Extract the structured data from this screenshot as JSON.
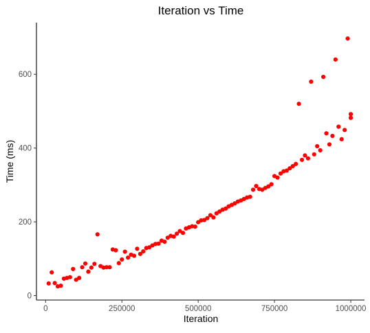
{
  "chart_data": {
    "type": "scatter",
    "title": "Iteration vs Time",
    "xlabel": "Iteration",
    "ylabel": "Time (ms)",
    "xlim": [
      -30000,
      1045000
    ],
    "ylim": [
      -12,
      740
    ],
    "xticks": [
      0,
      250000,
      500000,
      750000,
      1000000
    ],
    "xtick_labels": [
      "0",
      "250000",
      "500000",
      "750000",
      "1000000"
    ],
    "yticks": [
      0,
      200,
      400,
      600
    ],
    "ytick_labels": [
      "0",
      "200",
      "400",
      "600"
    ],
    "grid": false,
    "legend": "none",
    "point_color": "#ff0000",
    "series": [
      {
        "x": [
          10000,
          20000,
          30000,
          40000,
          50000,
          60000,
          70000,
          80000,
          90000,
          100000,
          110000,
          120000,
          130000,
          140000,
          150000,
          160000,
          170000,
          180000,
          190000,
          200000,
          210000,
          220000,
          230000,
          240000,
          250000,
          260000,
          270000,
          280000,
          290000,
          300000,
          310000,
          320000,
          330000,
          340000,
          350000,
          360000,
          370000,
          380000,
          390000,
          400000,
          410000,
          420000,
          430000,
          440000,
          450000,
          460000,
          470000,
          480000,
          490000,
          500000,
          510000,
          520000,
          530000,
          540000,
          550000,
          560000,
          570000,
          580000,
          590000,
          600000,
          610000,
          620000,
          630000,
          640000,
          650000,
          660000,
          670000,
          680000,
          690000,
          700000,
          710000,
          720000,
          730000,
          740000,
          750000,
          760000,
          770000,
          780000,
          790000,
          800000,
          810000,
          820000,
          830000,
          840000,
          850000,
          860000,
          870000,
          880000,
          890000,
          900000,
          910000,
          920000,
          930000,
          940000,
          950000,
          960000,
          970000,
          980000,
          990000,
          1000000
        ],
        "y": [
          33,
          63,
          34,
          25,
          27,
          46,
          48,
          50,
          72,
          43,
          48,
          77,
          87,
          65,
          76,
          86,
          166,
          80,
          76,
          77,
          77,
          125,
          123,
          88,
          98,
          119,
          103,
          111,
          108,
          127,
          113,
          120,
          129,
          131,
          136,
          140,
          141,
          149,
          146,
          157,
          162,
          160,
          168,
          175,
          170,
          182,
          185,
          188,
          187,
          199,
          204,
          205,
          210,
          218,
          212,
          223,
          228,
          233,
          236,
          242,
          246,
          250,
          255,
          258,
          262,
          266,
          268,
          287,
          297,
          289,
          287,
          292,
          296,
          302,
          324,
          320,
          331,
          337,
          339,
          345,
          351,
          357,
          520,
          368,
          380,
          372,
          580,
          383,
          405,
          394,
          593,
          440,
          410,
          433,
          640,
          458,
          424,
          449,
          697,
          482
        ]
      }
    ],
    "extra_point": {
      "x": 1000000,
      "y": 492
    }
  }
}
